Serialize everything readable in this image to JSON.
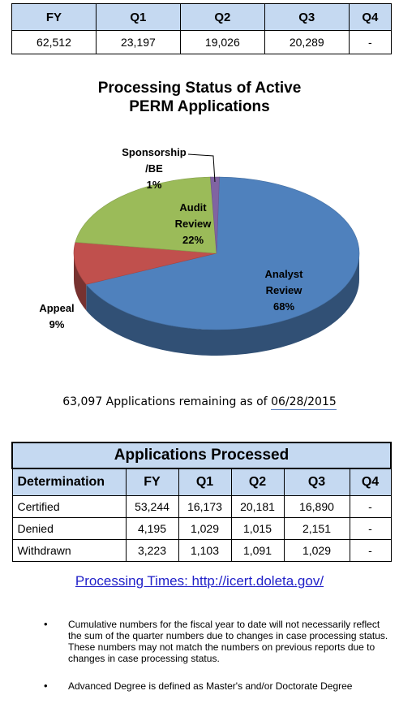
{
  "summary_table": {
    "headers": [
      "FY",
      "Q1",
      "Q2",
      "Q3",
      "Q4"
    ],
    "values": [
      "62,512",
      "23,197",
      "19,026",
      "20,289",
      "-"
    ]
  },
  "chart_title_line1": "Processing Status of Active",
  "chart_title_line2": "PERM Applications",
  "chart_data": {
    "type": "pie",
    "title": "Processing Status of Active PERM Applications",
    "slices": [
      {
        "label": [
          "Analyst",
          "Review"
        ],
        "percent": "68%",
        "value": 68,
        "color": "#4f81bd"
      },
      {
        "label": [
          "Appeal"
        ],
        "percent": "9%",
        "value": 9,
        "color": "#c0504d"
      },
      {
        "label": [
          "Audit",
          "Review"
        ],
        "percent": "22%",
        "value": 22,
        "color": "#9bbb59"
      },
      {
        "label": [
          "Sponsorship",
          "/BE"
        ],
        "percent": "1%",
        "value": 1,
        "color": "#8064a2"
      }
    ]
  },
  "remaining_text": "63,097 Applications remaining as of",
  "remaining_date": "06/28/2015",
  "processed_table": {
    "caption": "Applications Processed",
    "headers": [
      "Determination",
      "FY",
      "Q1",
      "Q2",
      "Q3",
      "Q4"
    ],
    "rows": [
      [
        "Certified",
        "53,244",
        "16,173",
        "20,181",
        "16,890",
        "-"
      ],
      [
        "Denied",
        "4,195",
        "1,029",
        "1,015",
        "2,151",
        "-"
      ],
      [
        "Withdrawn",
        "3,223",
        "1,103",
        "1,091",
        "1,029",
        "-"
      ]
    ]
  },
  "processing_link": "Processing Times:  http://icert.doleta.gov/",
  "notes": [
    "Cumulative numbers for the fiscal year to date will not necessarily reflect the sum of the quarter numbers due to changes in case processing status.  These numbers may not match the numbers on previous reports due to changes in case processing status.",
    "Advanced Degree is defined as Master's and/or Doctorate Degree"
  ],
  "bullet_glyph": "•"
}
